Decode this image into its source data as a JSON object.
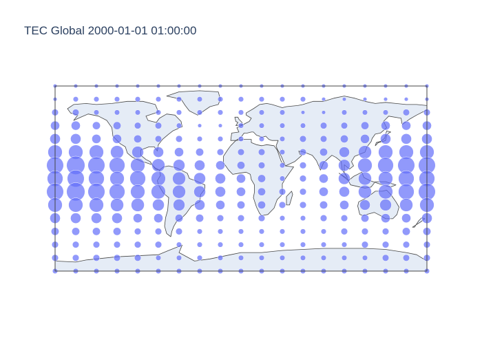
{
  "title": "TEC Global 2000-01-01 01:00:00",
  "colors": {
    "marker": "#636efa",
    "land": "#e5ecf6",
    "coast": "#444444",
    "title": "#2a3f5f"
  },
  "chart_data": {
    "type": "scatter",
    "projection": "equirectangular",
    "lon_range": [
      -180,
      180
    ],
    "lat_range": [
      -87.5,
      87.5
    ],
    "marker_opacity": 0.7,
    "lats": [
      87.5,
      75,
      62.5,
      50,
      37.5,
      25,
      12.5,
      0,
      -12.5,
      -25,
      -37.5,
      -50,
      -62.5,
      -75,
      -87.5
    ],
    "lons": [
      -180,
      -160,
      -140,
      -120,
      -100,
      -80,
      -60,
      -40,
      -20,
      0,
      20,
      40,
      60,
      80,
      100,
      120,
      140,
      160,
      180
    ],
    "tec_grid": [
      [
        3,
        3,
        3,
        3,
        3,
        3,
        3,
        3,
        3,
        3,
        3,
        3,
        3,
        3,
        3,
        3,
        3,
        3,
        3
      ],
      [
        3,
        4,
        4,
        4,
        4,
        4,
        4,
        4,
        4,
        4,
        4,
        4,
        4,
        3,
        3,
        3,
        3,
        3,
        3
      ],
      [
        5,
        5,
        4,
        4,
        4,
        4,
        4,
        4,
        4,
        4,
        4,
        4,
        3,
        3,
        4,
        4,
        4,
        5,
        5
      ],
      [
        7,
        7,
        6,
        6,
        5,
        5,
        4,
        3,
        3,
        4,
        4,
        4,
        4,
        5,
        5,
        6,
        7,
        7,
        7
      ],
      [
        8,
        8,
        7,
        7,
        6,
        5,
        5,
        4,
        4,
        4,
        4,
        4,
        5,
        5,
        6,
        7,
        8,
        8,
        8
      ],
      [
        11,
        11,
        11,
        10,
        9,
        8,
        7,
        6,
        5,
        5,
        5,
        4,
        5,
        6,
        8,
        10,
        11,
        11,
        11
      ],
      [
        13,
        14,
        13,
        12,
        11,
        10,
        9,
        8,
        7,
        6,
        5,
        4,
        5,
        7,
        9,
        11,
        12,
        13,
        13
      ],
      [
        12,
        13,
        12,
        11,
        12,
        11,
        10,
        9,
        8,
        7,
        6,
        4,
        5,
        7,
        9,
        10,
        11,
        12,
        12
      ],
      [
        13,
        14,
        13,
        12,
        11,
        11,
        10,
        9,
        8,
        7,
        6,
        5,
        5,
        7,
        8,
        10,
        11,
        12,
        13
      ],
      [
        11,
        11,
        11,
        10,
        10,
        9,
        9,
        8,
        7,
        6,
        6,
        5,
        5,
        6,
        7,
        8,
        9,
        10,
        11
      ],
      [
        8,
        8,
        8,
        8,
        7,
        7,
        6,
        6,
        5,
        5,
        5,
        4,
        4,
        5,
        5,
        6,
        7,
        7,
        8
      ],
      [
        6,
        6,
        6,
        6,
        5,
        5,
        5,
        4,
        4,
        4,
        4,
        4,
        4,
        4,
        5,
        5,
        5,
        6,
        6
      ],
      [
        5,
        5,
        5,
        5,
        5,
        5,
        4,
        4,
        4,
        4,
        4,
        4,
        4,
        4,
        4,
        5,
        5,
        5,
        5
      ],
      [
        5,
        5,
        5,
        5,
        5,
        4,
        4,
        4,
        4,
        4,
        4,
        4,
        4,
        4,
        4,
        4,
        5,
        5,
        5
      ],
      [
        4,
        4,
        4,
        4,
        4,
        4,
        4,
        4,
        4,
        4,
        4,
        4,
        4,
        4,
        4,
        4,
        4,
        4,
        4
      ]
    ]
  }
}
